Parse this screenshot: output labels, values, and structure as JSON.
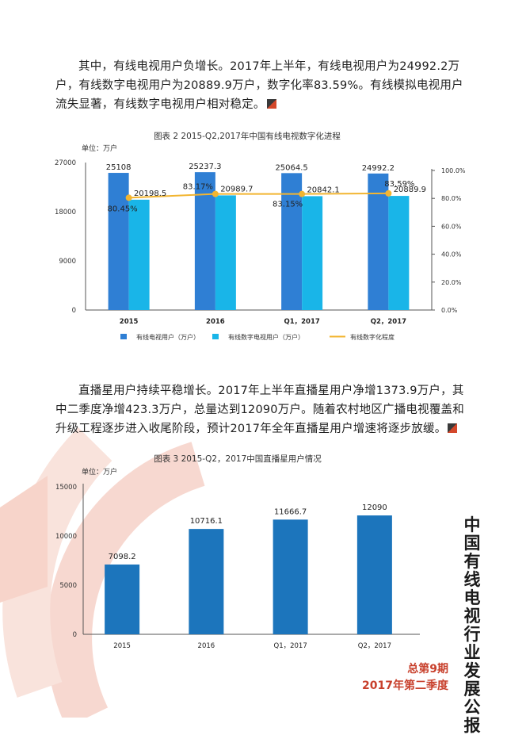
{
  "paragraph1": "其中，有线电视用户负增长。2017年上半年，有线电视用户为24992.2万户，有线数字电视用户为20889.9万户，数字化率83.59%。有线模拟电视用户流失显著，有线数字电视用户相对稳定。",
  "paragraph2": "直播星用户持续平稳增长。2017年上半年直播星用户净增1373.9万户，其中二季度净增423.3万户，总量达到12090万户。随着农村地区广播电视覆盖和升级工程逐步进入收尾阶段，预计2017年全年直播星用户增速将逐步放缓。",
  "vertical_title": [
    "中",
    "国",
    "有",
    "线",
    "电",
    "视",
    "行",
    "业",
    "发",
    "展",
    "公",
    "报"
  ],
  "footer": {
    "issue": "总第9期",
    "quarter": "2017年第二季度"
  },
  "colors": {
    "cable": "#2f7fd4",
    "digital": "#19b5e8",
    "rate": "#f2b531",
    "dbs": "#1c75bc",
    "accent": "#c8402c"
  },
  "chart_data": [
    {
      "type": "bar",
      "title": "图表 2 2015-Q2,2017年中国有线电视数字化进程",
      "unit_label": "单位：万户",
      "categories": [
        "2015",
        "2016",
        "Q1，2017",
        "Q2，2017"
      ],
      "y_ticks": [
        "27000",
        "18000",
        "9000",
        "0"
      ],
      "ylim": [
        0,
        27000
      ],
      "y2_ticks": [
        "100.0%",
        "80.0%",
        "60.0%",
        "40.0%",
        "20.0%",
        "0.0%"
      ],
      "y2lim": [
        0,
        1.0
      ],
      "series": [
        {
          "name": "有线电视用户（万户）",
          "kind": "bar",
          "values": [
            25108,
            25237.3,
            25064.5,
            24992.2
          ],
          "labels": [
            "25108",
            "25237.3",
            "25064.5",
            "24992.2"
          ]
        },
        {
          "name": "有线数字电视用户（万户）",
          "kind": "bar",
          "values": [
            20198.5,
            20989.7,
            20842.1,
            20889.9
          ],
          "labels": [
            "20198.5",
            "20989.7",
            "20842.1",
            "20889.9"
          ]
        },
        {
          "name": "有线数字化程度",
          "kind": "line",
          "values": [
            0.8045,
            0.8317,
            0.8315,
            0.8359
          ],
          "labels": [
            "80.45%",
            "83.17%",
            "83.15%",
            "83.59%"
          ]
        }
      ],
      "legend": "bottom",
      "grid": false
    },
    {
      "type": "bar",
      "title": "图表 3 2015-Q2，2017中国直播星用户情况",
      "unit_label": "单位：万户",
      "categories": [
        "2015",
        "2016",
        "Q1，2017",
        "Q2，2017"
      ],
      "y_ticks": [
        "15000",
        "10000",
        "5000",
        "0"
      ],
      "ylim": [
        0,
        15000
      ],
      "values": [
        7098.2,
        10716.1,
        11666.7,
        12090
      ],
      "labels": [
        "7098.2",
        "10716.1",
        "11666.7",
        "12090"
      ],
      "grid": false
    }
  ]
}
